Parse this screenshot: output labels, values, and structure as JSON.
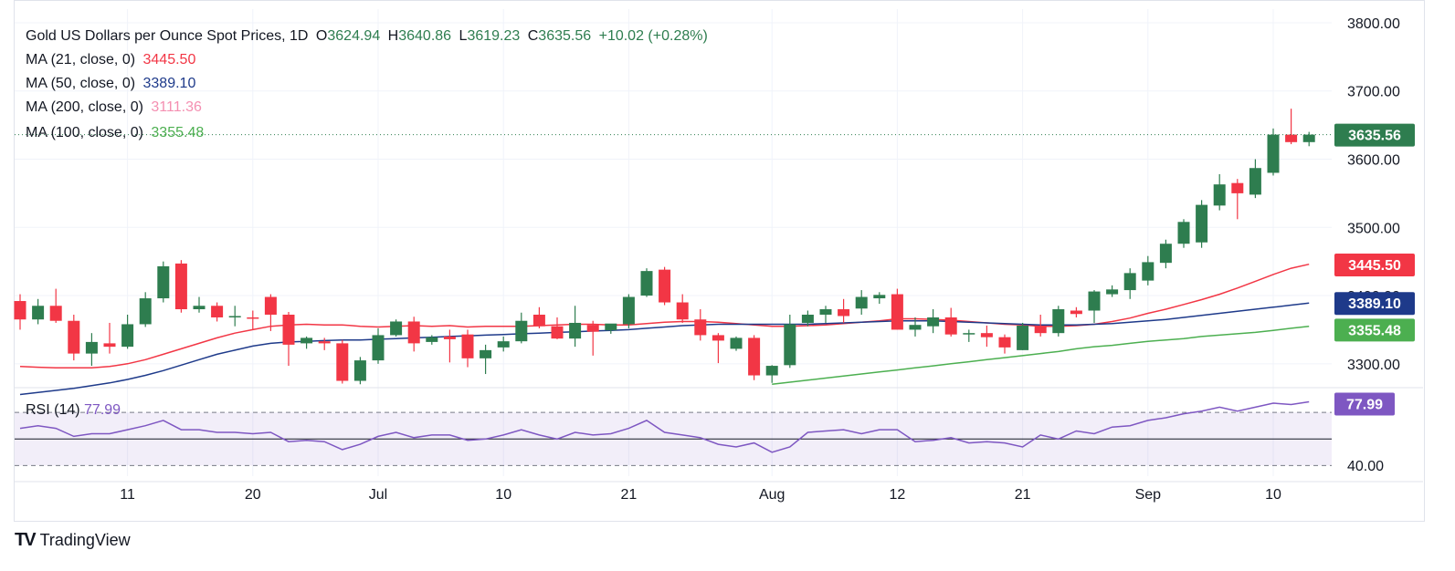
{
  "header": {
    "symbol": "Gold US Dollars per Ounce Spot Prices, 1D",
    "open_label": "O",
    "open": "3624.94",
    "high_label": "H",
    "high": "3640.86",
    "low_label": "L",
    "low": "3619.23",
    "close_label": "C",
    "close": "3635.56",
    "change": "+10.02 (+0.28%)"
  },
  "indicators": [
    {
      "key": "ma21",
      "label": "MA (21, close, 0)",
      "value": "3445.50",
      "color": "#f23645"
    },
    {
      "key": "ma50",
      "label": "MA (50, close, 0)",
      "value": "3389.10",
      "color": "#1e3a8a"
    },
    {
      "key": "ma200",
      "label": "MA (200, close, 0)",
      "value": "3111.36",
      "color": "#f48fb1"
    },
    {
      "key": "ma100",
      "label": "MA (100, close, 0)",
      "value": "3355.48",
      "color": "#4caf50"
    }
  ],
  "rsi_legend": {
    "label": "RSI (14)",
    "value": "77.99",
    "color": "#7e57c2"
  },
  "price_badges": [
    {
      "value": "3635.56",
      "color": "#2e7d4f"
    },
    {
      "value": "3445.50",
      "color": "#f23645"
    },
    {
      "value": "3389.10",
      "color": "#1e3a8a"
    },
    {
      "value": "3355.48",
      "color": "#4caf50"
    }
  ],
  "rsi_badge": {
    "value": "77.99",
    "color": "#7e57c2"
  },
  "brand": {
    "name": "TradingView",
    "logo": "TV"
  },
  "chart_data": {
    "type": "candlestick",
    "price_axis": {
      "ticks": [
        3300,
        3400,
        3500,
        3600,
        3700,
        3800
      ],
      "tick_labels": [
        "3300.00",
        "3400.00",
        "3500.00",
        "3600.00",
        "3700.00",
        "3800.00"
      ],
      "range": [
        3265,
        3820
      ]
    },
    "rsi_axis": {
      "ticks": [
        40
      ],
      "tick_labels": [
        "40.00"
      ],
      "range": [
        22,
        88
      ],
      "upper_band": 70,
      "lower_band": 30,
      "mid": 50
    },
    "x_axis": {
      "labels": [
        "11",
        "20",
        "Jul",
        "10",
        "21",
        "Aug",
        "12",
        "21",
        "Sep",
        "10"
      ],
      "label_index": [
        6,
        13,
        20,
        27,
        34,
        42,
        49,
        56,
        63,
        70
      ]
    },
    "up_color": "#2e7d4f",
    "down_color": "#f23645",
    "candles": [
      {
        "o": 3392,
        "h": 3402,
        "l": 3350,
        "c": 3365
      },
      {
        "o": 3365,
        "h": 3395,
        "l": 3358,
        "c": 3385
      },
      {
        "o": 3385,
        "h": 3410,
        "l": 3360,
        "c": 3363
      },
      {
        "o": 3363,
        "h": 3372,
        "l": 3305,
        "c": 3315
      },
      {
        "o": 3315,
        "h": 3345,
        "l": 3297,
        "c": 3332
      },
      {
        "o": 3330,
        "h": 3360,
        "l": 3315,
        "c": 3325
      },
      {
        "o": 3325,
        "h": 3372,
        "l": 3322,
        "c": 3358
      },
      {
        "o": 3358,
        "h": 3405,
        "l": 3354,
        "c": 3396
      },
      {
        "o": 3396,
        "h": 3450,
        "l": 3390,
        "c": 3443
      },
      {
        "o": 3447,
        "h": 3452,
        "l": 3375,
        "c": 3380
      },
      {
        "o": 3380,
        "h": 3398,
        "l": 3375,
        "c": 3385
      },
      {
        "o": 3385,
        "h": 3390,
        "l": 3362,
        "c": 3368
      },
      {
        "o": 3368,
        "h": 3385,
        "l": 3355,
        "c": 3370
      },
      {
        "o": 3368,
        "h": 3378,
        "l": 3350,
        "c": 3367
      },
      {
        "o": 3398,
        "h": 3402,
        "l": 3348,
        "c": 3372
      },
      {
        "o": 3372,
        "h": 3376,
        "l": 3297,
        "c": 3328
      },
      {
        "o": 3330,
        "h": 3340,
        "l": 3322,
        "c": 3338
      },
      {
        "o": 3333,
        "h": 3338,
        "l": 3320,
        "c": 3330
      },
      {
        "o": 3330,
        "h": 3335,
        "l": 3271,
        "c": 3275
      },
      {
        "o": 3275,
        "h": 3310,
        "l": 3270,
        "c": 3305
      },
      {
        "o": 3305,
        "h": 3352,
        "l": 3300,
        "c": 3342
      },
      {
        "o": 3342,
        "h": 3365,
        "l": 3340,
        "c": 3362
      },
      {
        "o": 3362,
        "h": 3369,
        "l": 3318,
        "c": 3330
      },
      {
        "o": 3332,
        "h": 3342,
        "l": 3328,
        "c": 3339
      },
      {
        "o": 3340,
        "h": 3350,
        "l": 3302,
        "c": 3336
      },
      {
        "o": 3343,
        "h": 3350,
        "l": 3295,
        "c": 3308
      },
      {
        "o": 3308,
        "h": 3328,
        "l": 3285,
        "c": 3320
      },
      {
        "o": 3324,
        "h": 3340,
        "l": 3318,
        "c": 3333
      },
      {
        "o": 3333,
        "h": 3375,
        "l": 3330,
        "c": 3363
      },
      {
        "o": 3372,
        "h": 3383,
        "l": 3352,
        "c": 3355
      },
      {
        "o": 3355,
        "h": 3368,
        "l": 3336,
        "c": 3337
      },
      {
        "o": 3337,
        "h": 3385,
        "l": 3325,
        "c": 3360
      },
      {
        "o": 3357,
        "h": 3363,
        "l": 3312,
        "c": 3347
      },
      {
        "o": 3349,
        "h": 3357,
        "l": 3344,
        "c": 3359
      },
      {
        "o": 3358,
        "h": 3402,
        "l": 3352,
        "c": 3398
      },
      {
        "o": 3400,
        "h": 3440,
        "l": 3398,
        "c": 3436
      },
      {
        "o": 3438,
        "h": 3442,
        "l": 3386,
        "c": 3390
      },
      {
        "o": 3390,
        "h": 3402,
        "l": 3360,
        "c": 3365
      },
      {
        "o": 3365,
        "h": 3380,
        "l": 3334,
        "c": 3342
      },
      {
        "o": 3342,
        "h": 3345,
        "l": 3301,
        "c": 3334
      },
      {
        "o": 3322,
        "h": 3340,
        "l": 3319,
        "c": 3338
      },
      {
        "o": 3338,
        "h": 3342,
        "l": 3276,
        "c": 3283
      },
      {
        "o": 3283,
        "h": 3298,
        "l": 3272,
        "c": 3297
      },
      {
        "o": 3298,
        "h": 3372,
        "l": 3294,
        "c": 3358
      },
      {
        "o": 3360,
        "h": 3378,
        "l": 3355,
        "c": 3372
      },
      {
        "o": 3372,
        "h": 3385,
        "l": 3360,
        "c": 3380
      },
      {
        "o": 3380,
        "h": 3395,
        "l": 3360,
        "c": 3370
      },
      {
        "o": 3381,
        "h": 3408,
        "l": 3372,
        "c": 3398
      },
      {
        "o": 3396,
        "h": 3405,
        "l": 3388,
        "c": 3401
      },
      {
        "o": 3402,
        "h": 3410,
        "l": 3350,
        "c": 3350
      },
      {
        "o": 3350,
        "h": 3368,
        "l": 3340,
        "c": 3357
      },
      {
        "o": 3355,
        "h": 3380,
        "l": 3345,
        "c": 3368
      },
      {
        "o": 3368,
        "h": 3382,
        "l": 3340,
        "c": 3343
      },
      {
        "o": 3343,
        "h": 3350,
        "l": 3332,
        "c": 3345
      },
      {
        "o": 3345,
        "h": 3356,
        "l": 3325,
        "c": 3339
      },
      {
        "o": 3339,
        "h": 3343,
        "l": 3315,
        "c": 3324
      },
      {
        "o": 3320,
        "h": 3360,
        "l": 3320,
        "c": 3356
      },
      {
        "o": 3355,
        "h": 3372,
        "l": 3340,
        "c": 3345
      },
      {
        "o": 3345,
        "h": 3385,
        "l": 3340,
        "c": 3380
      },
      {
        "o": 3378,
        "h": 3383,
        "l": 3368,
        "c": 3373
      },
      {
        "o": 3378,
        "h": 3408,
        "l": 3360,
        "c": 3406
      },
      {
        "o": 3402,
        "h": 3415,
        "l": 3398,
        "c": 3409
      },
      {
        "o": 3408,
        "h": 3440,
        "l": 3395,
        "c": 3433
      },
      {
        "o": 3422,
        "h": 3458,
        "l": 3415,
        "c": 3449
      },
      {
        "o": 3448,
        "h": 3482,
        "l": 3440,
        "c": 3476
      },
      {
        "o": 3476,
        "h": 3512,
        "l": 3470,
        "c": 3508
      },
      {
        "o": 3478,
        "h": 3540,
        "l": 3470,
        "c": 3533
      },
      {
        "o": 3532,
        "h": 3578,
        "l": 3525,
        "c": 3563
      },
      {
        "o": 3565,
        "h": 3571,
        "l": 3512,
        "c": 3550
      },
      {
        "o": 3548,
        "h": 3600,
        "l": 3543,
        "c": 3587
      },
      {
        "o": 3580,
        "h": 3645,
        "l": 3576,
        "c": 3636
      },
      {
        "o": 3636,
        "h": 3674,
        "l": 3622,
        "c": 3625
      },
      {
        "o": 3625,
        "h": 3640,
        "l": 3619,
        "c": 3636
      }
    ],
    "ma21": [
      3296,
      3295,
      3294,
      3294,
      3294,
      3296,
      3300,
      3306,
      3314,
      3322,
      3330,
      3338,
      3345,
      3350,
      3355,
      3357,
      3358,
      3357,
      3357,
      3355,
      3354,
      3355,
      3356,
      3355,
      3356,
      3354,
      3355,
      3355,
      3355,
      3356,
      3357,
      3358,
      3358,
      3357,
      3357,
      3359,
      3361,
      3362,
      3362,
      3361,
      3359,
      3357,
      3355,
      3355,
      3356,
      3357,
      3359,
      3361,
      3363,
      3366,
      3366,
      3365,
      3364,
      3362,
      3360,
      3358,
      3357,
      3355,
      3355,
      3356,
      3358,
      3362,
      3367,
      3374,
      3380,
      3387,
      3394,
      3402,
      3411,
      3421,
      3431,
      3440,
      3446
    ],
    "ma50": [
      3255,
      3258,
      3261,
      3264,
      3268,
      3272,
      3277,
      3283,
      3290,
      3298,
      3306,
      3314,
      3320,
      3326,
      3330,
      3332,
      3333,
      3334,
      3335,
      3335,
      3336,
      3337,
      3338,
      3339,
      3340,
      3341,
      3342,
      3343,
      3344,
      3345,
      3346,
      3347,
      3348,
      3349,
      3350,
      3352,
      3354,
      3356,
      3357,
      3358,
      3358,
      3358,
      3358,
      3358,
      3358,
      3359,
      3360,
      3361,
      3362,
      3363,
      3363,
      3363,
      3362,
      3361,
      3360,
      3359,
      3358,
      3357,
      3357,
      3357,
      3358,
      3359,
      3361,
      3363,
      3365,
      3368,
      3371,
      3374,
      3377,
      3380,
      3383,
      3386,
      3389
    ],
    "ma100": [
      null,
      null,
      null,
      null,
      null,
      null,
      null,
      null,
      null,
      null,
      null,
      null,
      null,
      null,
      null,
      null,
      null,
      null,
      null,
      null,
      null,
      null,
      null,
      null,
      null,
      null,
      null,
      null,
      null,
      null,
      null,
      null,
      null,
      null,
      null,
      null,
      null,
      null,
      null,
      null,
      null,
      null,
      3270,
      3273,
      3276,
      3279,
      3282,
      3285,
      3288,
      3291,
      3294,
      3297,
      3300,
      3303,
      3306,
      3309,
      3312,
      3315,
      3318,
      3322,
      3325,
      3327,
      3330,
      3333,
      3335,
      3337,
      3340,
      3342,
      3344,
      3346,
      3349,
      3352,
      3355
    ],
    "rsi": [
      58,
      60,
      58,
      52,
      54,
      54,
      57,
      60,
      64,
      57,
      57,
      55,
      55,
      54,
      55,
      48,
      49,
      48,
      42,
      46,
      52,
      55,
      51,
      53,
      53,
      49,
      50,
      53,
      57,
      53,
      50,
      55,
      53,
      54,
      58,
      64,
      55,
      53,
      51,
      46,
      44,
      47,
      40,
      44,
      55,
      56,
      57,
      54,
      57,
      57,
      48,
      49,
      51,
      47,
      48,
      47,
      44,
      53,
      50,
      56,
      54,
      59,
      60,
      64,
      66,
      69,
      71,
      74,
      71,
      74,
      77,
      76,
      78
    ]
  }
}
